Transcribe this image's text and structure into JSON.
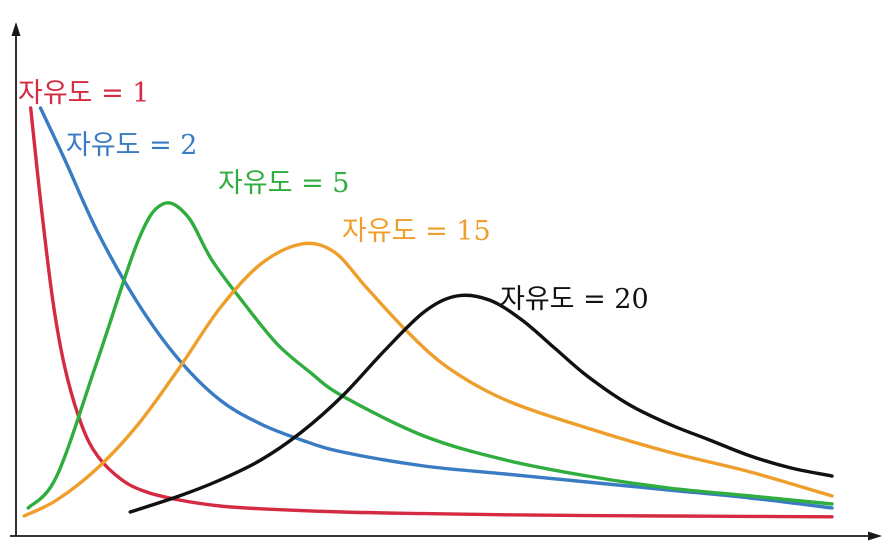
{
  "chart_data": {
    "type": "line",
    "title": "",
    "xlabel": "",
    "ylabel": "",
    "grid": false,
    "legend": "inline labels next to curves",
    "x_range": [
      0,
      10
    ],
    "y_range": [
      0,
      1
    ],
    "series": [
      {
        "name": "자유도 = 1",
        "color": "#d42a42",
        "x": [
          0.18,
          0.3,
          0.45,
          0.6,
          0.8,
          1.0,
          1.3,
          1.6,
          2.0,
          2.5,
          3.0,
          4.0,
          5.0,
          6.0,
          7.0,
          8.0,
          9.0,
          10.0
        ],
        "y": [
          1.03,
          0.8,
          0.55,
          0.38,
          0.24,
          0.16,
          0.1,
          0.07,
          0.05,
          0.035,
          0.028,
          0.02,
          0.016,
          0.013,
          0.011,
          0.01,
          0.009,
          0.008
        ]
      },
      {
        "name": "자유도 = 2",
        "color": "#3a7cc3",
        "x": [
          0.3,
          0.6,
          1.0,
          1.5,
          2.0,
          2.5,
          3.0,
          3.5,
          4.0,
          5.0,
          6.0,
          7.0,
          8.0,
          9.0,
          10.0
        ],
        "y": [
          1.03,
          0.9,
          0.72,
          0.54,
          0.4,
          0.3,
          0.24,
          0.2,
          0.17,
          0.135,
          0.115,
          0.095,
          0.075,
          0.055,
          0.03
        ]
      },
      {
        "name": "자유도 = 5",
        "color": "#2fae3f",
        "x": [
          0.15,
          0.5,
          1.0,
          1.5,
          1.8,
          2.1,
          2.4,
          2.8,
          3.2,
          3.6,
          4.0,
          5.0,
          6.0,
          7.0,
          8.0,
          9.0,
          10.0
        ],
        "y": [
          0.03,
          0.11,
          0.4,
          0.7,
          0.79,
          0.76,
          0.65,
          0.54,
          0.44,
          0.37,
          0.31,
          0.21,
          0.15,
          0.11,
          0.08,
          0.06,
          0.04
        ]
      },
      {
        "name": "자유도 = 15",
        "color": "#ee9e2b",
        "x": [
          0.1,
          0.5,
          1.0,
          1.5,
          2.0,
          2.5,
          3.0,
          3.5,
          3.9,
          4.3,
          4.8,
          5.3,
          6.0,
          7.0,
          8.0,
          9.0,
          10.0
        ],
        "y": [
          0.01,
          0.05,
          0.13,
          0.24,
          0.38,
          0.53,
          0.64,
          0.69,
          0.67,
          0.58,
          0.47,
          0.38,
          0.3,
          0.23,
          0.17,
          0.12,
          0.06
        ]
      },
      {
        "name": "자유도 = 20",
        "color": "#111111",
        "x": [
          1.4,
          2.0,
          2.5,
          3.0,
          3.5,
          4.0,
          4.5,
          5.0,
          5.4,
          5.8,
          6.2,
          6.6,
          7.0,
          7.5,
          8.0,
          8.5,
          9.0,
          9.5,
          10.0
        ],
        "y": [
          0.02,
          0.06,
          0.1,
          0.15,
          0.22,
          0.31,
          0.42,
          0.52,
          0.56,
          0.55,
          0.5,
          0.43,
          0.36,
          0.29,
          0.24,
          0.2,
          0.16,
          0.13,
          0.11
        ]
      }
    ]
  }
}
